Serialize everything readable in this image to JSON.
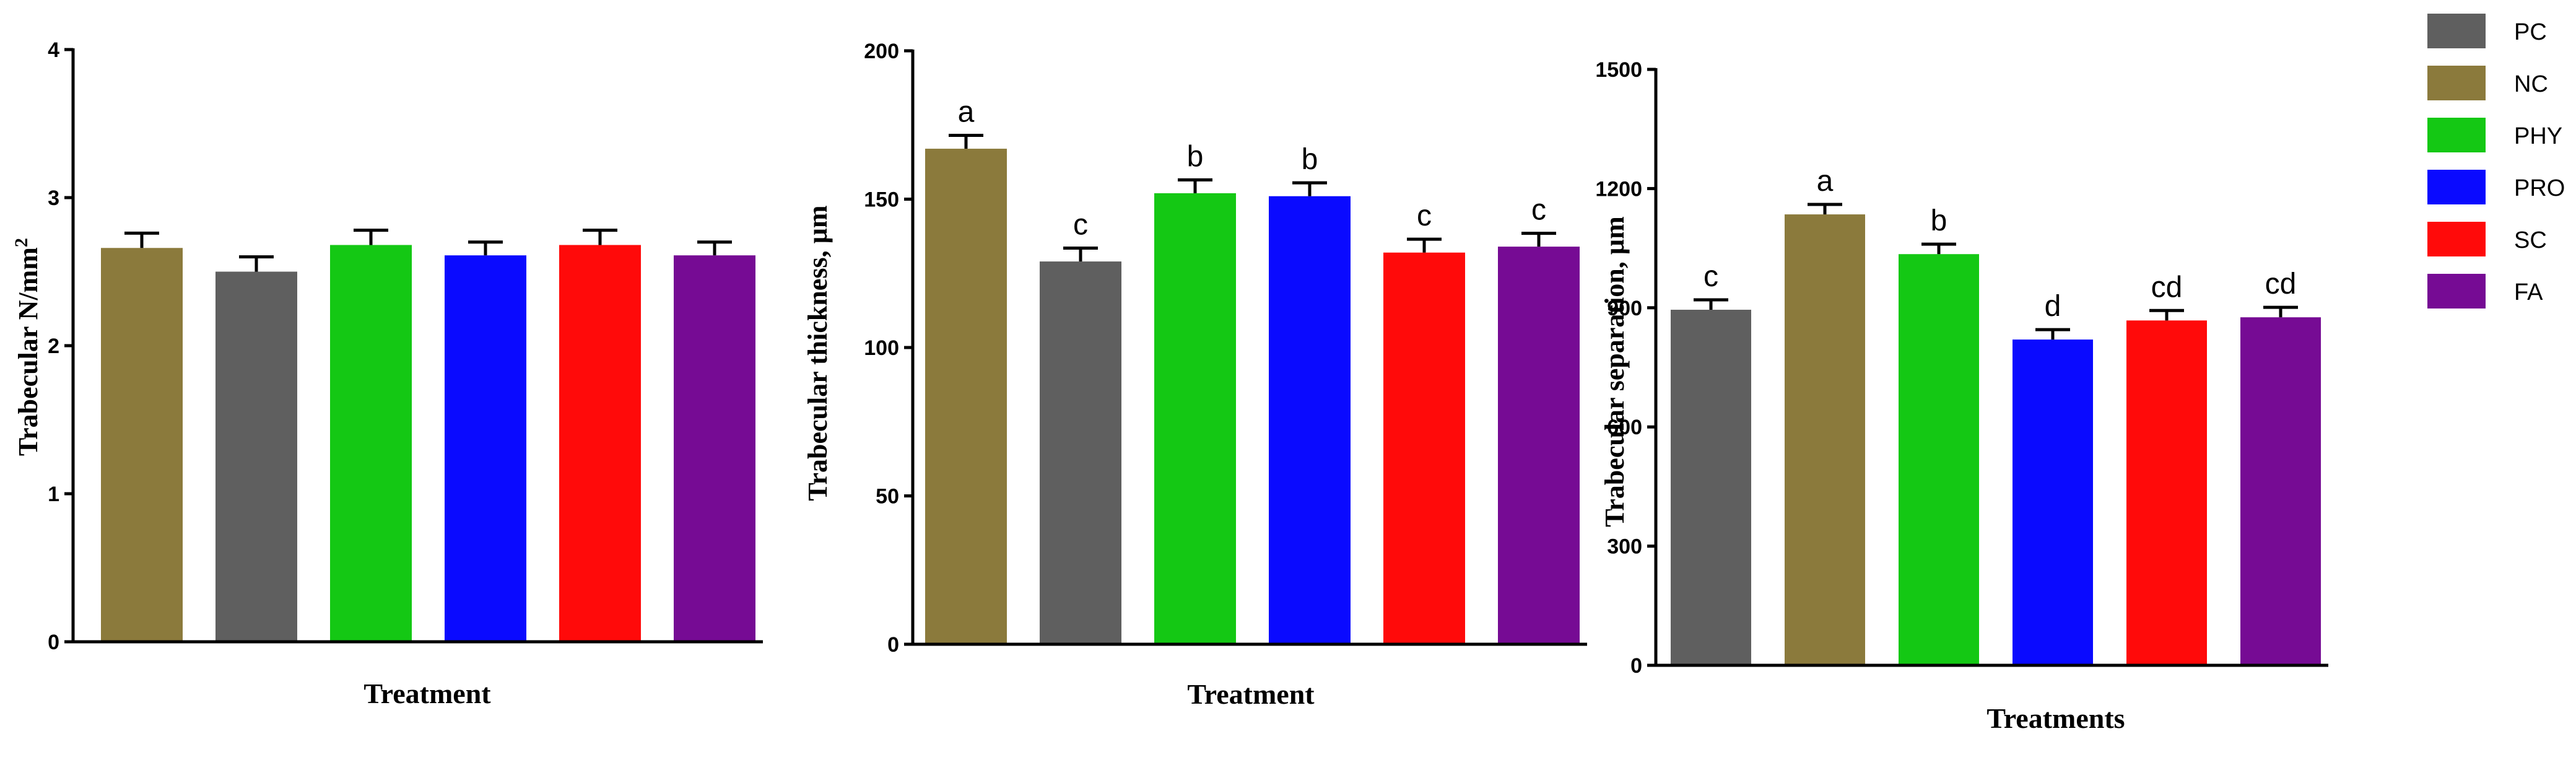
{
  "legend": [
    {
      "label": "PC",
      "color": "#5f5f5f"
    },
    {
      "label": "NC",
      "color": "#8b7a3c"
    },
    {
      "label": "PHY",
      "color": "#14c814"
    },
    {
      "label": "PRO",
      "color": "#0a0aff"
    },
    {
      "label": "SC",
      "color": "#ff0a0a"
    },
    {
      "label": "FA",
      "color": "#760b94"
    }
  ],
  "chart_data": [
    {
      "type": "bar",
      "title": "",
      "xlabel": "Treatment",
      "ylabel": "Trabecular N/mm",
      "ylabel_sup": "2",
      "ylim": [
        0,
        4
      ],
      "yticks": [
        0,
        1,
        2,
        3,
        4
      ],
      "categories": [
        "NC",
        "PC",
        "PHY",
        "PRO",
        "SC",
        "FA"
      ],
      "values": [
        2.66,
        2.5,
        2.68,
        2.61,
        2.68,
        2.61
      ],
      "errors": [
        0.1,
        0.1,
        0.1,
        0.09,
        0.1,
        0.09
      ],
      "sig_labels": [
        "",
        "",
        "",
        "",
        "",
        ""
      ]
    },
    {
      "type": "bar",
      "title": "",
      "xlabel": "Treatment",
      "ylabel": "Trabecular thickness, µm",
      "ylabel_sup": "",
      "ylim": [
        0,
        200
      ],
      "yticks": [
        0,
        50,
        100,
        150,
        200
      ],
      "categories": [
        "NC",
        "PC",
        "PHY",
        "PRO",
        "SC",
        "FA"
      ],
      "values": [
        167,
        129,
        152,
        151,
        132,
        134
      ],
      "errors": [
        4.5,
        4.5,
        4.5,
        4.5,
        4.5,
        4.5
      ],
      "sig_labels": [
        "a",
        "c",
        "b",
        "b",
        "c",
        "c"
      ]
    },
    {
      "type": "bar",
      "title": "",
      "xlabel": "Treatments",
      "ylabel": "Trabecular separation, µm",
      "ylabel_sup": "",
      "ylim": [
        0,
        1500
      ],
      "yticks": [
        0,
        300,
        600,
        900,
        1200,
        1500
      ],
      "categories": [
        "PC",
        "NC",
        "PHY",
        "PRO",
        "SC",
        "FA"
      ],
      "values": [
        895,
        1135,
        1035,
        820,
        868,
        876
      ],
      "errors": [
        25,
        25,
        25,
        25,
        25,
        25
      ],
      "sig_labels": [
        "c",
        "a",
        "b",
        "d",
        "cd",
        "cd"
      ]
    }
  ]
}
